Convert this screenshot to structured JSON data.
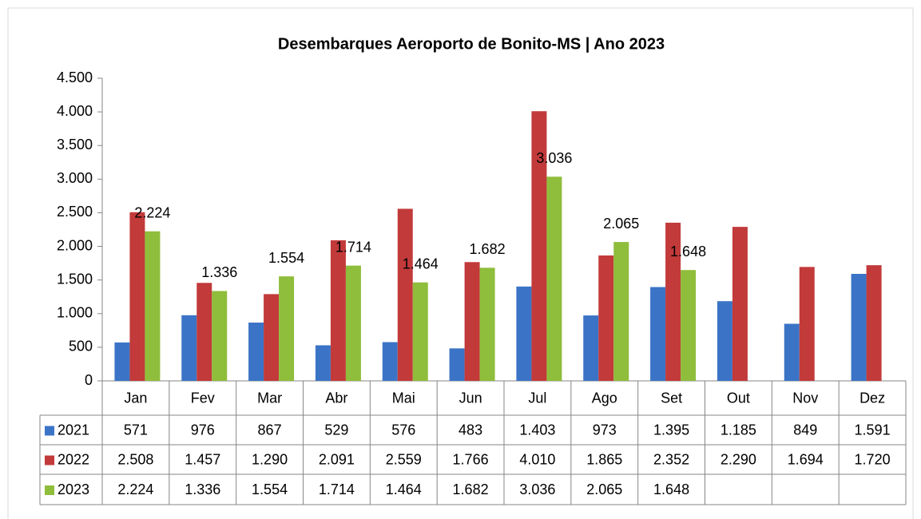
{
  "chart_data": {
    "type": "bar",
    "title": "Desembarques Aeroporto de Bonito-MS | Ano 2023",
    "categories": [
      "Jan",
      "Fev",
      "Mar",
      "Abr",
      "Mai",
      "Jun",
      "Jul",
      "Ago",
      "Set",
      "Out",
      "Nov",
      "Dez"
    ],
    "series": [
      {
        "name": "2021",
        "color": "#3b74c6",
        "values": [
          571,
          976,
          867,
          529,
          576,
          483,
          1403,
          973,
          1395,
          1185,
          849,
          1591
        ],
        "value_labels": [
          "571",
          "976",
          "867",
          "529",
          "576",
          "483",
          "1.403",
          "973",
          "1.395",
          "1.185",
          "849",
          "1.591"
        ]
      },
      {
        "name": "2022",
        "color": "#c23a3a",
        "values": [
          2508,
          1457,
          1290,
          2091,
          2559,
          1766,
          4010,
          1865,
          2352,
          2290,
          1694,
          1720
        ],
        "value_labels": [
          "2.508",
          "1.457",
          "1.290",
          "2.091",
          "2.559",
          "1.766",
          "4.010",
          "1.865",
          "2.352",
          "2.290",
          "1.694",
          "1.720"
        ]
      },
      {
        "name": "2023",
        "color": "#8fbd3c",
        "values": [
          2224,
          1336,
          1554,
          1714,
          1464,
          1682,
          3036,
          2065,
          1648,
          null,
          null,
          null
        ],
        "value_labels": [
          "2.224",
          "1.336",
          "1.554",
          "1.714",
          "1.464",
          "1.682",
          "3.036",
          "2.065",
          "1.648",
          null,
          null,
          null
        ]
      }
    ],
    "data_labels_series": 2,
    "ylim": [
      0,
      4500
    ],
    "yticks": [
      0,
      500,
      {
        "value": 1000,
        "label": "1.000"
      },
      {
        "value": 1500,
        "label": "1.500"
      },
      {
        "value": 2000,
        "label": "2.000"
      },
      {
        "value": 2500,
        "label": "2.500"
      },
      {
        "value": 3000,
        "label": "3.000"
      },
      {
        "value": 3500,
        "label": "3.500"
      },
      {
        "value": 4000,
        "label": "4.000"
      },
      {
        "value": 4500,
        "label": "4.500"
      }
    ],
    "grid": false
  }
}
